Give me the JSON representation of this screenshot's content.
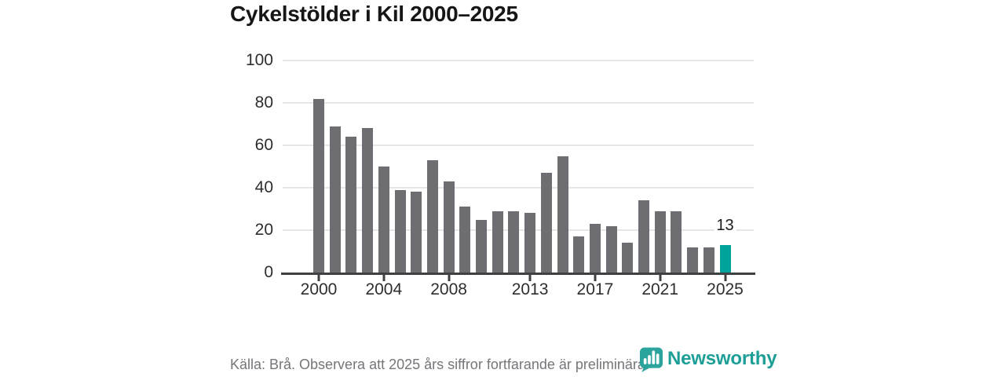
{
  "title": "Cykelstölder i Kil 2000–2025",
  "chart_data": {
    "type": "bar",
    "title": "Cykelstölder i Kil 2000–2025",
    "x": [
      2000,
      2001,
      2002,
      2003,
      2004,
      2005,
      2006,
      2007,
      2008,
      2009,
      2010,
      2011,
      2012,
      2013,
      2014,
      2015,
      2016,
      2017,
      2018,
      2019,
      2020,
      2021,
      2022,
      2023,
      2024,
      2025
    ],
    "values": [
      82,
      69,
      64,
      68,
      50,
      39,
      38,
      53,
      43,
      31,
      25,
      29,
      29,
      28,
      47,
      55,
      17,
      23,
      22,
      14,
      34,
      29,
      29,
      12,
      12,
      13
    ],
    "xlabel": "",
    "ylabel": "",
    "ylim": [
      0,
      100
    ],
    "y_ticks": [
      0,
      20,
      40,
      60,
      80,
      100
    ],
    "x_tick_years": [
      2000,
      2004,
      2008,
      2013,
      2017,
      2021,
      2025
    ],
    "x_tick_labels": [
      "2000",
      "2004",
      "2008",
      "2013",
      "2017",
      "2021",
      "2025"
    ],
    "grid": true,
    "legend": "none",
    "bar_color": "#6e6e72",
    "highlight_color": "#00a39b",
    "highlight_year": 2025,
    "highlight_index": 25,
    "highlight_value": 13,
    "highlight_label": "13"
  },
  "footer": {
    "source_note": "Källa: Brå. Observera att 2025 års siffror fortfarande är preliminära."
  },
  "branding": {
    "logo_text": "Newsworthy",
    "logo_color": "#1d9e96",
    "icon_color": "#2aa49c",
    "logo_icon": "newsworthy-bubble-barchart-icon"
  }
}
